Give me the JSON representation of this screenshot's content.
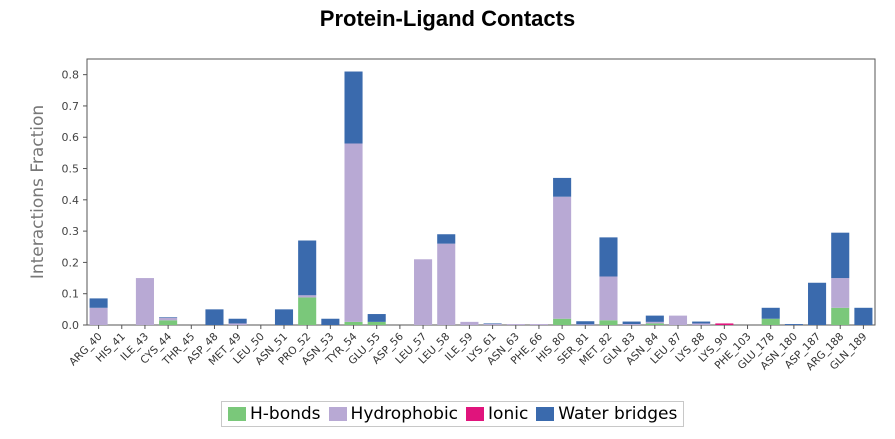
{
  "chart_data": {
    "type": "bar",
    "stacked": true,
    "title": "Protein-Ligand Contacts",
    "ylabel": "Interactions Fraction",
    "xlabel": "",
    "ylim": [
      0,
      0.85
    ],
    "yticks": [
      "0.0",
      "0.1",
      "0.2",
      "0.3",
      "0.4",
      "0.5",
      "0.6",
      "0.7",
      "0.8"
    ],
    "grid": false,
    "legend_position": "bottom-center",
    "categories": [
      "ARG_40",
      "HIS_41",
      "ILE_43",
      "CYS_44",
      "THR_45",
      "ASP_48",
      "MET_49",
      "LEU_50",
      "ASN_51",
      "PRO_52",
      "ASN_53",
      "TYR_54",
      "GLU_55",
      "ASP_56",
      "LEU_57",
      "LEU_58",
      "ILE_59",
      "LYS_61",
      "ASN_63",
      "PHE_66",
      "HIS_80",
      "SER_81",
      "MET_82",
      "GLN_83",
      "ASN_84",
      "LEU_87",
      "LYS_88",
      "LYS_90",
      "PHE_103",
      "GLU_178",
      "ASN_180",
      "ASP_187",
      "ARG_188",
      "GLN_189"
    ],
    "series": [
      {
        "name": "H-bonds",
        "color": "#7ac87a",
        "values": [
          0,
          0,
          0,
          0.015,
          0,
          0,
          0,
          0,
          0,
          0.088,
          0,
          0.01,
          0.01,
          0,
          0,
          0,
          0,
          0,
          0,
          0,
          0.02,
          0,
          0.015,
          0,
          0.005,
          0,
          0,
          0,
          0,
          0.02,
          0,
          0,
          0.055,
          0
        ]
      },
      {
        "name": "Hydrophobic",
        "color": "#b8a9d4",
        "values": [
          0.055,
          0,
          0.15,
          0.008,
          0,
          0,
          0.005,
          0,
          0,
          0.007,
          0,
          0.57,
          0,
          0,
          0.21,
          0.26,
          0.01,
          0.003,
          0.003,
          0.003,
          0.39,
          0.002,
          0.14,
          0.003,
          0.005,
          0.03,
          0.005,
          0,
          0,
          0,
          0,
          0,
          0.095,
          0
        ]
      },
      {
        "name": "Ionic",
        "color": "#e0147c",
        "values": [
          0,
          0,
          0,
          0,
          0,
          0,
          0,
          0,
          0,
          0,
          0,
          0,
          0,
          0,
          0,
          0,
          0,
          0,
          0,
          0,
          0,
          0,
          0,
          0,
          0,
          0,
          0,
          0.005,
          0,
          0,
          0,
          0,
          0,
          0
        ]
      },
      {
        "name": "Water bridges",
        "color": "#3a6aad",
        "values": [
          0.03,
          0,
          0,
          0.002,
          0,
          0.05,
          0.015,
          0,
          0.05,
          0.175,
          0.02,
          0.23,
          0.025,
          0,
          0,
          0.03,
          0,
          0.002,
          0,
          0,
          0.06,
          0.01,
          0.125,
          0.008,
          0.02,
          0,
          0.006,
          0,
          0,
          0.035,
          0.003,
          0.135,
          0.145,
          0.055
        ]
      }
    ]
  }
}
